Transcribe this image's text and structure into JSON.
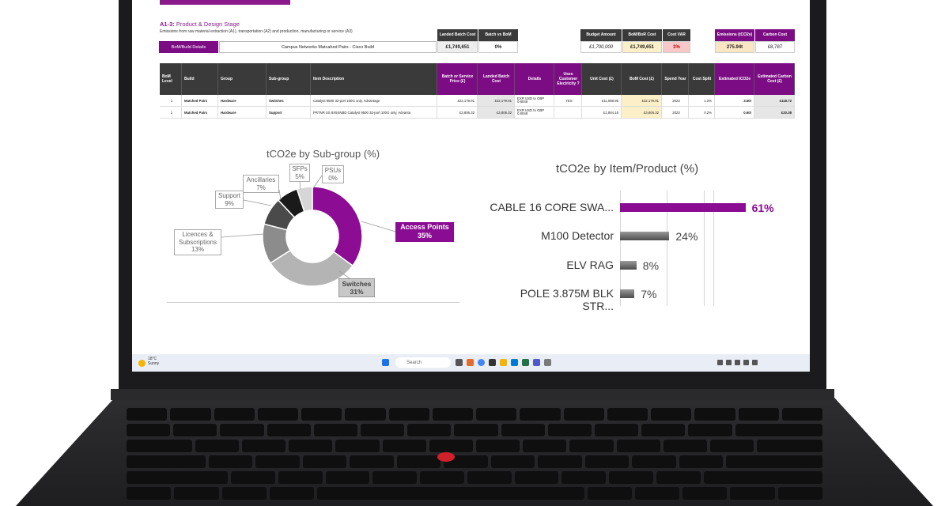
{
  "sheet": {
    "title_prefix": "A1-3:",
    "title_text": "Product & Design Stage",
    "subtitle": "Emissions from raw material extraction (A1), transportation (A2) and production, manufacturing or service (A3)",
    "bom_button": "BoM/Build Details",
    "bom_name": "Campus Networks Matcahed Pairs - Cisco Build"
  },
  "summary": {
    "landed_batch_cost_label": "Landed Batch Cost",
    "landed_batch_cost": "£1,749,651",
    "batch_vs_bom_label": "Batch vs BoM",
    "batch_vs_bom": "0%",
    "budget_amount_label": "Budget Amount",
    "budget_amount": "£1,700,000",
    "bom_cost_label": "BoM/BoR Cost",
    "bom_cost": "£1,749,651",
    "cost_var_label": "Cost VAR",
    "cost_var": "3%",
    "emissions_label": "Emissions (tCO2e)",
    "emissions": "275.94t",
    "carbon_cost_label": "Carbon Cost",
    "carbon_cost": "£8,787"
  },
  "table": {
    "headers": [
      "BoM Level",
      "Build",
      "Group",
      "Sub-group",
      "Item Description",
      "Batch or Service Price (£)",
      "Landed Batch Cost",
      "Details",
      "Uses Customer Electricity ?",
      "Unit Cost (£)",
      "BoM Cost (£)",
      "Spend Year",
      "Cost Split",
      "Estimated tCO2e",
      "Estimated Carbon Cost (£)"
    ],
    "rows": [
      [
        "1",
        "Matched Pairs",
        "Hardware",
        "Switches",
        "Catalyst 9500 32-port 100G only, Advantage",
        "£22,179.91",
        "£22,179.91",
        "EXR USD to GBP 0.8048",
        "YES",
        "£11,089.95",
        "£22,179.91",
        "2023",
        "1.3%",
        "3.50t",
        "£118.72"
      ],
      [
        "1",
        "Matched Pairs",
        "Hardware",
        "Support",
        "PRTNR SS 8X5XNBD Catalyst 9500 32-port 100G only, Advanta",
        "£3,806.32",
        "£3,806.32",
        "EXR USD to GBP 0.8048",
        "",
        "£1,904.16",
        "£3,806.32",
        "2023",
        "0.2%",
        "0.60t",
        "£20.38"
      ]
    ]
  },
  "pie": {
    "title": "tCO2e by Sub-group (%)",
    "slices": [
      {
        "name": "Access Points",
        "pct": "35%",
        "value": 35,
        "color": "#8c0c94"
      },
      {
        "name": "Switches",
        "pct": "31%",
        "value": 31,
        "color": "#b4b4b4"
      },
      {
        "name": "Licences & Subscriptions",
        "pct": "13%",
        "value": 13,
        "color": "#8c8c8c"
      },
      {
        "name": "Support",
        "pct": "9%",
        "value": 9,
        "color": "#4a4a4a"
      },
      {
        "name": "Ancillaries",
        "pct": "7%",
        "value": 7,
        "color": "#1a1a1a"
      },
      {
        "name": "SFPs",
        "pct": "5%",
        "value": 5,
        "color": "#d6d6d6"
      },
      {
        "name": "PSUs",
        "pct": "0%",
        "value": 0,
        "color": "#a0a0a0"
      }
    ]
  },
  "chart_data": [
    {
      "type": "pie",
      "title": "tCO2e by Sub-group (%)",
      "categories": [
        "Access Points",
        "Switches",
        "Licences & Subscriptions",
        "Support",
        "Ancillaries",
        "SFPs",
        "PSUs"
      ],
      "values": [
        35,
        31,
        13,
        9,
        7,
        5,
        0
      ]
    },
    {
      "type": "bar",
      "title": "tCO2e by Item/Product (%)",
      "categories": [
        "CABLE 16 CORE SWA...",
        "M100 Detector",
        "ELV RAG",
        "POLE 3.875M BLK STR..."
      ],
      "values": [
        61,
        24,
        8,
        7
      ],
      "value_labels": [
        "61%",
        "24%",
        "8%",
        "7%"
      ],
      "colors": [
        "#8a0c92",
        "#6b6b6b",
        "#6b6b6b",
        "#6b6b6b"
      ],
      "xlim": [
        0,
        75
      ]
    }
  ],
  "bars": {
    "title": "tCO2e by Item/Product (%)"
  },
  "taskbar": {
    "search_placeholder": "Search",
    "weather_temp": "18°C",
    "weather_desc": "Sunny"
  }
}
